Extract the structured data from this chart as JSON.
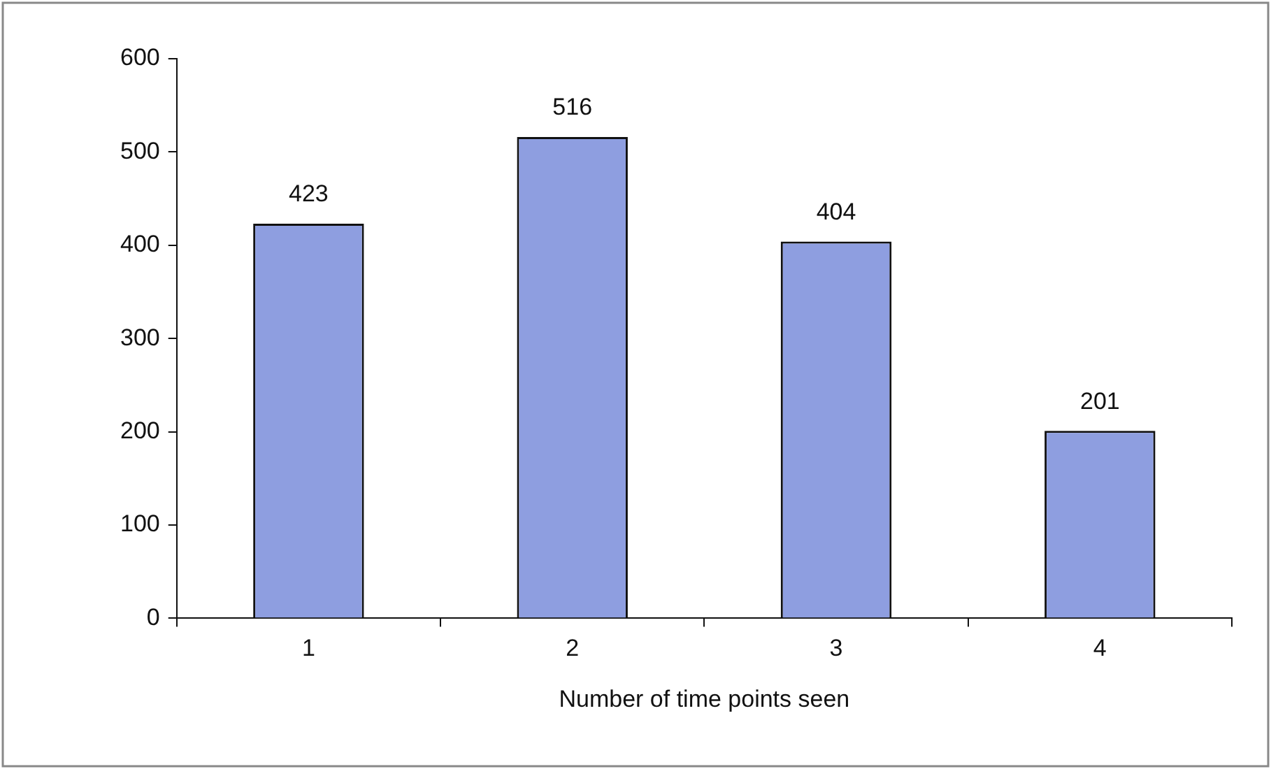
{
  "chart_data": {
    "type": "bar",
    "xlabel": "Number of time points seen",
    "categories": [
      "1",
      "2",
      "3",
      "4"
    ],
    "values": [
      423,
      516,
      404,
      201
    ],
    "color": "#8e9ee0",
    "ylim": [
      0,
      600
    ],
    "yticks": [
      0,
      100,
      200,
      300,
      400,
      500,
      600
    ],
    "grid": false,
    "legend": false,
    "data_labels": true
  }
}
